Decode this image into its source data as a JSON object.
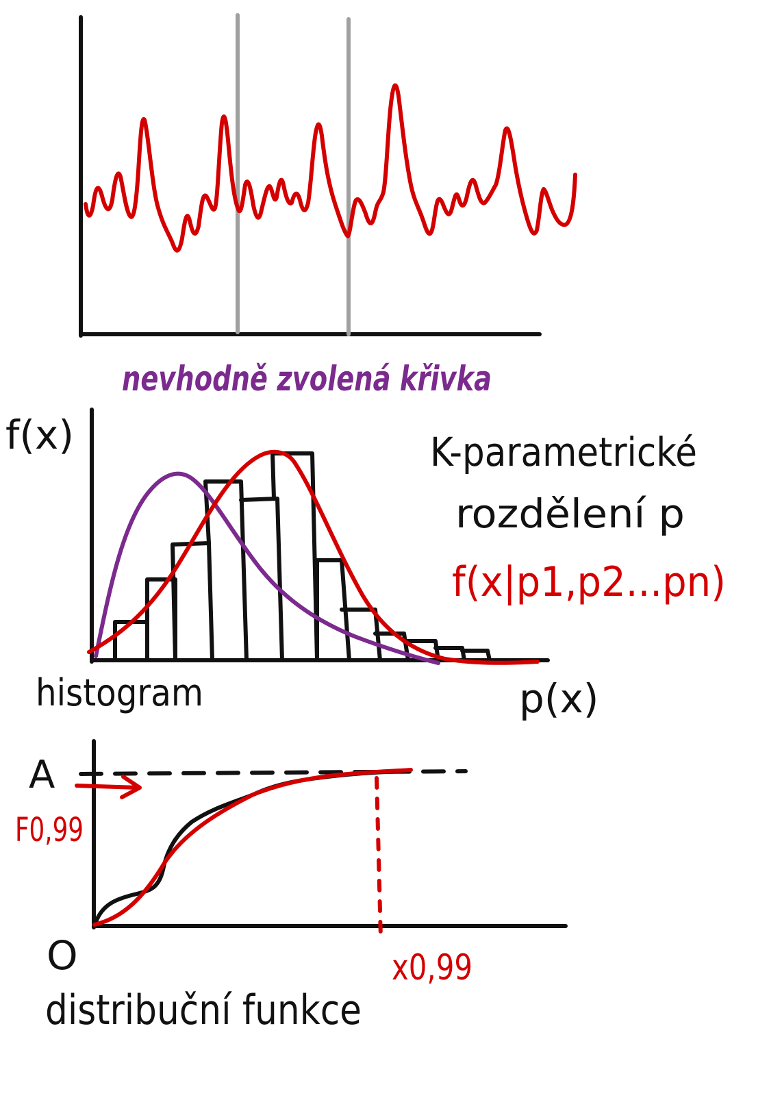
{
  "colors": {
    "ink": "#111111",
    "red": "#d40000",
    "purple": "#7b2a8e",
    "gray": "#a0a0a0"
  },
  "panel_top": {
    "caption": "nevhodně zvolená křivka"
  },
  "panel_middle": {
    "y_label": "f(x)",
    "x_label": "p(x)",
    "caption": "histogram",
    "side_title_line1": "K-parametrické",
    "side_title_line2": "rozdělení p",
    "formula": "f(x|p1,p2...pn)"
  },
  "panel_bottom": {
    "label_A": "A",
    "label_zero": "O",
    "label_F": "F0,99",
    "label_x": "x0,99",
    "caption": "distribuční funkce"
  }
}
